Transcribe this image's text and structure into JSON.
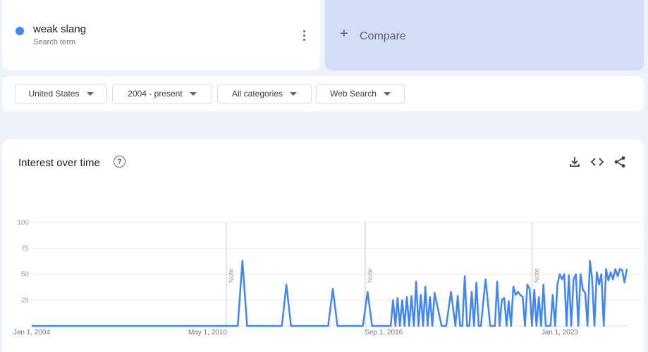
{
  "term": {
    "name": "weak slang",
    "subtitle": "Search term",
    "color": "#4285f4"
  },
  "compare": {
    "label": "Compare"
  },
  "filters": [
    {
      "label": "United States"
    },
    {
      "label": "2004 - present"
    },
    {
      "label": "All categories"
    },
    {
      "label": "Web Search"
    }
  ],
  "panel": {
    "title": "Interest over time",
    "icons": [
      "help-icon",
      "download-icon",
      "embed-icon",
      "share-icon"
    ]
  },
  "chart_data": {
    "type": "line",
    "xlabel": "",
    "ylabel": "",
    "ylim": [
      0,
      100
    ],
    "y_ticks": [
      "100",
      "75",
      "50",
      "25"
    ],
    "y_tick_values": [
      100,
      75,
      50,
      25
    ],
    "x_range": [
      "2004-01-01",
      "2025-06-01"
    ],
    "x_tick_labels": [
      "Jan 1, 2004",
      "May 1, 2010",
      "Sep 1, 2016",
      "Jan 1, 2023"
    ],
    "x_tick_values": [
      "2004-01-01",
      "2010-05-01",
      "2016-09-01",
      "2023-01-01"
    ],
    "annotations": [
      {
        "label": "Note",
        "date": "2011-01-01"
      },
      {
        "label": "Note",
        "date": "2016-01-01"
      },
      {
        "label": "Note",
        "date": "2022-01-01"
      }
    ],
    "grid": true,
    "series": [
      {
        "color": "#4285f4",
        "x": [
          "2004-01-01",
          "2011-06-01",
          "2011-08-01",
          "2011-10-01",
          "2011-12-01",
          "2013-01-01",
          "2013-03-01",
          "2013-05-01",
          "2014-09-01",
          "2014-11-01",
          "2015-01-01",
          "2015-12-01",
          "2016-02-01",
          "2016-04-01",
          "2016-10-01",
          "2016-12-01",
          "2017-01-01",
          "2017-02-01",
          "2017-03-01",
          "2017-04-01",
          "2017-05-01",
          "2017-06-01",
          "2017-07-01",
          "2017-08-01",
          "2017-09-01",
          "2017-10-01",
          "2017-11-01",
          "2017-12-01",
          "2018-01-01",
          "2018-02-01",
          "2018-03-01",
          "2018-04-01",
          "2018-05-01",
          "2018-06-01",
          "2018-07-01",
          "2018-10-01",
          "2018-12-01",
          "2019-02-01",
          "2019-04-01",
          "2019-05-01",
          "2019-06-01",
          "2019-07-01",
          "2019-08-01",
          "2019-09-01",
          "2019-10-01",
          "2019-11-01",
          "2019-12-01",
          "2020-01-01",
          "2020-02-01",
          "2020-03-01",
          "2020-05-01",
          "2020-07-01",
          "2020-08-01",
          "2020-09-01",
          "2020-10-01",
          "2020-11-01",
          "2020-12-01",
          "2021-01-01",
          "2021-02-01",
          "2021-03-01",
          "2021-04-01",
          "2021-05-01",
          "2021-06-01",
          "2021-07-01",
          "2021-08-01",
          "2021-09-01",
          "2021-10-01",
          "2021-11-01",
          "2021-12-01",
          "2022-01-01",
          "2022-02-01",
          "2022-03-01",
          "2022-04-01",
          "2022-05-01",
          "2022-06-01",
          "2022-07-01",
          "2022-08-01",
          "2022-09-01",
          "2022-10-01",
          "2022-11-01",
          "2022-12-01",
          "2023-01-01",
          "2023-02-01",
          "2023-03-01",
          "2023-04-01",
          "2023-05-01",
          "2023-06-01",
          "2023-07-01",
          "2023-08-01",
          "2023-09-01",
          "2023-10-01",
          "2023-11-01",
          "2023-12-01",
          "2024-01-01",
          "2024-02-01",
          "2024-03-01",
          "2024-04-01",
          "2024-05-01",
          "2024-06-01",
          "2024-07-01",
          "2024-08-01",
          "2024-09-01",
          "2024-10-01",
          "2024-11-01",
          "2024-12-01",
          "2025-01-01",
          "2025-02-01",
          "2025-03-01",
          "2025-04-01",
          "2025-05-01",
          "2025-06-01"
        ],
        "values": [
          0,
          0,
          63,
          0,
          0,
          0,
          40,
          0,
          0,
          36,
          0,
          0,
          33,
          0,
          0,
          0,
          25,
          0,
          27,
          0,
          25,
          0,
          28,
          0,
          29,
          0,
          43,
          0,
          30,
          0,
          38,
          0,
          28,
          0,
          32,
          0,
          0,
          33,
          0,
          29,
          0,
          0,
          48,
          0,
          0,
          33,
          0,
          42,
          0,
          0,
          45,
          0,
          0,
          0,
          43,
          0,
          25,
          27,
          0,
          24,
          0,
          38,
          30,
          33,
          30,
          28,
          0,
          40,
          36,
          0,
          35,
          0,
          28,
          0,
          40,
          0,
          0,
          0,
          30,
          0,
          40,
          50,
          45,
          50,
          0,
          49,
          0,
          45,
          50,
          0,
          50,
          35,
          32,
          0,
          63,
          46,
          0,
          52,
          40,
          50,
          0,
          55,
          44,
          52,
          45,
          55,
          48,
          55,
          54,
          42,
          55
        ]
      }
    ]
  }
}
